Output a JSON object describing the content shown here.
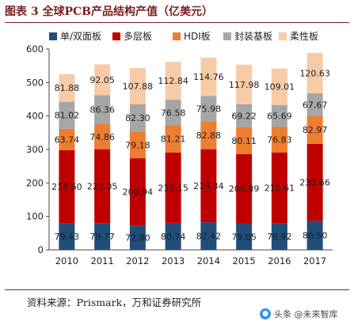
{
  "figure": {
    "title": "图表 3   全球PCB产品结构产值（亿美元）",
    "source": "资料来源：Prismark，万和证券研究所",
    "watermark": "头条 @未来智库"
  },
  "colors": {
    "单/双面板": "#1f4e79",
    "多层板": "#c00000",
    "HDI板": "#ed7d31",
    "封装基板": "#a6a6a6",
    "柔性板": "#f8cba7",
    "title": "#7a1f1f"
  },
  "chart_data": {
    "type": "bar",
    "stacked": true,
    "categories": [
      "2010",
      "2011",
      "2012",
      "2013",
      "2014",
      "2015",
      "2016",
      "2017"
    ],
    "series": [
      {
        "name": "单/双面板",
        "values": [
          79.43,
          79.77,
          72.8,
          80.74,
          82.42,
          79.05,
          79.92,
          86.5
        ]
      },
      {
        "name": "多层板",
        "values": [
          218.6,
          221.05,
          200.94,
          210.15,
          218.34,
          206.89,
          210.61,
          230.66
        ]
      },
      {
        "name": "HDI板",
        "values": [
          63.74,
          74.86,
          79.18,
          81.21,
          82.88,
          80.11,
          76.83,
          82.97
        ]
      },
      {
        "name": "封装基板",
        "values": [
          81.02,
          86.36,
          82.3,
          76.58,
          75.98,
          69.22,
          65.69,
          67.67
        ]
      },
      {
        "name": "柔性板",
        "values": [
          81.88,
          92.05,
          107.88,
          112.84,
          114.76,
          117.98,
          109.01,
          120.63
        ]
      }
    ],
    "data_labels": [
      [
        "79.43",
        "79.77",
        "72.80",
        "80.74",
        "82.42",
        "79.05",
        "79.92",
        "86.50"
      ],
      [
        "218.60",
        "221.05",
        "200.94",
        "210.15",
        "218.34",
        "206.89",
        "210.61",
        "230.66"
      ],
      [
        "63.74",
        "74.86",
        "79.18",
        "81.21",
        "82.88",
        "80.11",
        "76.83",
        "82.97"
      ],
      [
        "81.02",
        "86.36",
        "82.30",
        "76.58",
        "75.98",
        "69.22",
        "65.69",
        "67.67"
      ],
      [
        "81.88",
        "92.05",
        "107.88",
        "112.84",
        "114.76",
        "117.98",
        "109.01",
        "120.63"
      ]
    ],
    "ylim": [
      0,
      600
    ],
    "yticks": [
      0,
      100,
      200,
      300,
      400,
      500,
      600
    ],
    "grid": false,
    "legend": "top"
  }
}
